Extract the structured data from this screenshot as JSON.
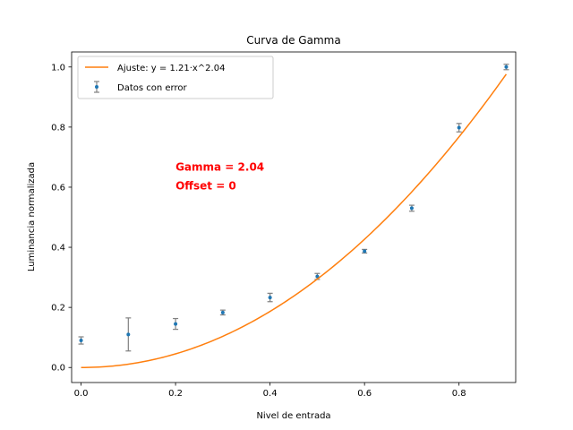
{
  "chart_data": {
    "type": "scatter",
    "title": "Curva de Gamma",
    "xlabel": "Nivel de entrada",
    "ylabel": "Luminancia normalizada",
    "xlim": [
      -0.02,
      0.92
    ],
    "ylim": [
      -0.05,
      1.05
    ],
    "xticks": [
      0.0,
      0.2,
      0.4,
      0.6,
      0.8
    ],
    "xtick_labels": [
      "0.0",
      "0.2",
      "0.4",
      "0.6",
      "0.8"
    ],
    "yticks": [
      0.0,
      0.2,
      0.4,
      0.6,
      0.8,
      1.0
    ],
    "ytick_labels": [
      "0.0",
      "0.2",
      "0.4",
      "0.6",
      "0.8",
      "1.0"
    ],
    "grid": false,
    "legend_position": "top-left",
    "series": [
      {
        "name": "Datos con error",
        "kind": "errorbar",
        "color": "#1f77b4",
        "error_color": "#808080",
        "x": [
          0.0,
          0.1,
          0.2,
          0.3,
          0.4,
          0.5,
          0.6,
          0.7,
          0.8,
          0.9
        ],
        "y": [
          0.09,
          0.11,
          0.145,
          0.183,
          0.233,
          0.303,
          0.387,
          0.53,
          0.798,
          1.0
        ],
        "yerr": [
          0.012,
          0.055,
          0.018,
          0.008,
          0.014,
          0.01,
          0.006,
          0.01,
          0.014,
          0.009
        ]
      },
      {
        "name": "Ajuste: y = 1.21·x^2.04",
        "kind": "line",
        "color": "#ff7f0e",
        "function": {
          "a": 1.21,
          "b": 2.04
        },
        "x_range": [
          0.0,
          0.9
        ]
      }
    ],
    "annotations": [
      {
        "lines": [
          "Gamma = 2.04",
          "Offset = 0"
        ],
        "x": 0.2,
        "y": 0.67,
        "color": "#ff0000"
      }
    ]
  }
}
